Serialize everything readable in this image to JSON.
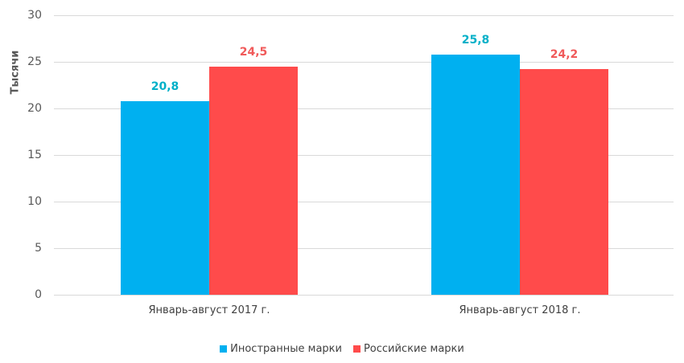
{
  "chart_data": {
    "type": "bar",
    "title": "",
    "xlabel": "",
    "ylabel": "Тысячи",
    "ylim": [
      0,
      30
    ],
    "yticks": [
      0,
      5,
      10,
      15,
      20,
      25,
      30
    ],
    "grid": true,
    "legend_position": "bottom",
    "categories": [
      "Январь-август 2017 г.",
      "Январь-август 2018 г."
    ],
    "series": [
      {
        "name": "Иностранные марки",
        "color": "#00b0f0",
        "label_color": "#00b0c8",
        "values": [
          20.8,
          25.8
        ],
        "labels": [
          "20,8",
          "25,8"
        ]
      },
      {
        "name": "Российские марки",
        "color": "#ff4b4b",
        "label_color": "#f05a5a",
        "values": [
          24.5,
          24.2
        ],
        "labels": [
          "24,5",
          "24,2"
        ]
      }
    ]
  },
  "yaxis": {
    "label": "Тысячи",
    "ticks": [
      "0",
      "5",
      "10",
      "15",
      "20",
      "25",
      "30"
    ]
  },
  "legend": {
    "items": [
      {
        "label": "Иностранные марки",
        "color": "#00b0f0"
      },
      {
        "label": "Российские марки",
        "color": "#ff4b4b"
      }
    ]
  }
}
